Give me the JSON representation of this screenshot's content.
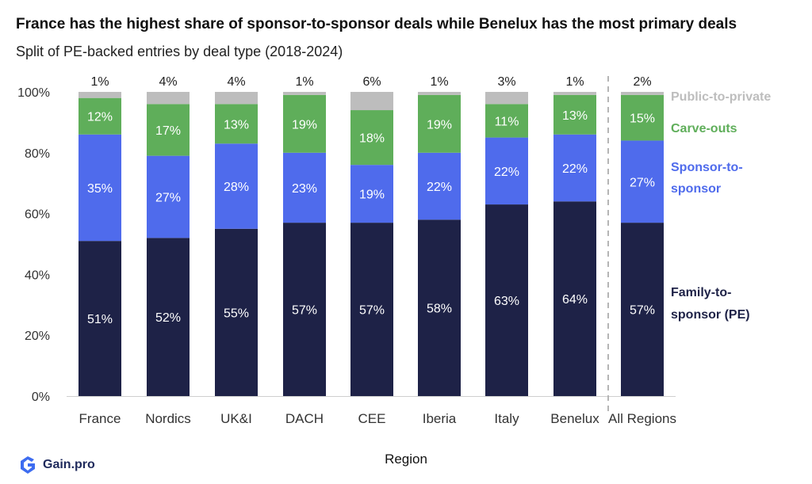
{
  "header": {
    "title": "France has the highest share of sponsor-to-sponsor deals while Benelux has the most primary deals",
    "subtitle": "Split of PE-backed entries by deal type (2018-2024)"
  },
  "brand": {
    "name": "Gain.pro",
    "icon": "gain-pro-logo-icon"
  },
  "chart_data": {
    "type": "bar",
    "stacked": true,
    "xlabel": "Region",
    "ylabel": "",
    "ylim": [
      0,
      100
    ],
    "yticks": [
      "0%",
      "20%",
      "40%",
      "60%",
      "80%",
      "100%"
    ],
    "grid": false,
    "legend_placement": "right, labels next to last bar",
    "categories": [
      "France",
      "Nordics",
      "UK&I",
      "DACH",
      "CEE",
      "Iberia",
      "Italy",
      "Benelux",
      "All Regions"
    ],
    "series": [
      {
        "name": "Family-to-sponsor (PE)",
        "legend_lines": [
          "Family-to-",
          "sponsor (PE)"
        ],
        "color": "#1e2247",
        "label_color": "#ffffff",
        "values": [
          51,
          52,
          55,
          57,
          57,
          58,
          63,
          64,
          57
        ],
        "labels": [
          "51%",
          "52%",
          "55%",
          "57%",
          "57%",
          "58%",
          "63%",
          "64%",
          "57%"
        ]
      },
      {
        "name": "Sponsor-to-sponsor",
        "legend_lines": [
          "Sponsor-to-",
          "sponsor"
        ],
        "color": "#4f6bec",
        "label_color": "#ffffff",
        "values": [
          35,
          27,
          28,
          23,
          19,
          22,
          22,
          22,
          27
        ],
        "labels": [
          "35%",
          "27%",
          "28%",
          "23%",
          "19%",
          "22%",
          "22%",
          "22%",
          "27%"
        ]
      },
      {
        "name": "Carve-outs",
        "legend_lines": [
          "Carve-outs"
        ],
        "color": "#5fae5a",
        "label_color": "#ffffff",
        "values": [
          12,
          17,
          13,
          19,
          18,
          19,
          11,
          13,
          15
        ],
        "labels": [
          "12%",
          "17%",
          "13%",
          "19%",
          "18%",
          "19%",
          "11%",
          "13%",
          "15%"
        ]
      },
      {
        "name": "Public-to-private",
        "legend_lines": [
          "Public-to-private"
        ],
        "color": "#bdbdbd",
        "label_color": "#222222",
        "values": [
          1,
          4,
          4,
          1,
          6,
          1,
          3,
          1,
          2
        ],
        "labels": [
          "1%",
          "4%",
          "4%",
          "1%",
          "6%",
          "1%",
          "3%",
          "1%",
          "2%"
        ]
      }
    ],
    "legend_colors": [
      "#1e2247",
      "#4f6bec",
      "#5fae5a",
      "#bdbdbd"
    ]
  }
}
